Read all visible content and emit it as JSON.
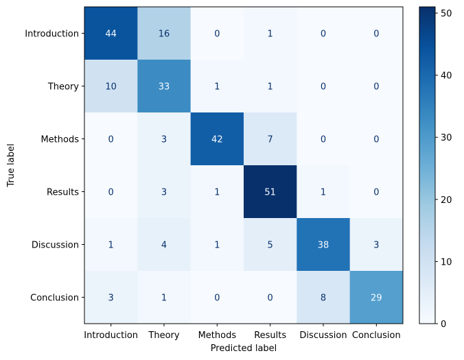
{
  "chart_data": {
    "type": "heatmap",
    "xlabel": "Predicted label",
    "ylabel": "True label",
    "x_categories": [
      "Introduction",
      "Theory",
      "Methods",
      "Results",
      "Discussion",
      "Conclusion"
    ],
    "y_categories": [
      "Introduction",
      "Theory",
      "Methods",
      "Results",
      "Discussion",
      "Conclusion"
    ],
    "values": [
      [
        44,
        16,
        0,
        1,
        0,
        0
      ],
      [
        10,
        33,
        1,
        1,
        0,
        0
      ],
      [
        0,
        3,
        42,
        7,
        0,
        0
      ],
      [
        0,
        3,
        1,
        51,
        1,
        0
      ],
      [
        1,
        4,
        1,
        5,
        38,
        3
      ],
      [
        3,
        1,
        0,
        0,
        8,
        29
      ]
    ],
    "colormap": "Blues",
    "colorbar": {
      "range": [
        0,
        51
      ],
      "ticks": [
        0,
        10,
        20,
        30,
        40,
        50
      ]
    }
  }
}
